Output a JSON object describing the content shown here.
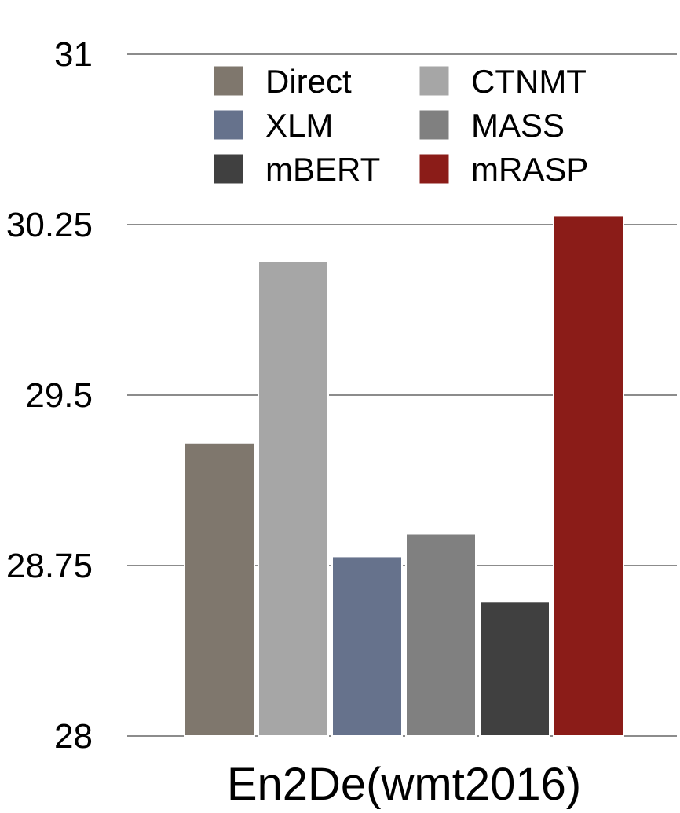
{
  "chart_data": {
    "type": "bar",
    "categories": [
      "En2De(wmt2016)"
    ],
    "series": [
      {
        "name": "Direct",
        "values": [
          29.29
        ],
        "color": "#7f776d"
      },
      {
        "name": "CTNMT",
        "values": [
          30.09
        ],
        "color": "#a6a6a6"
      },
      {
        "name": "XLM",
        "values": [
          28.79
        ],
        "color": "#66728c"
      },
      {
        "name": "MASS",
        "values": [
          28.89
        ],
        "color": "#808080"
      },
      {
        "name": "mBERT",
        "values": [
          28.59
        ],
        "color": "#404040"
      },
      {
        "name": "mRASP",
        "values": [
          30.29
        ],
        "color": "#8b1c18"
      }
    ],
    "legend_order": [
      "Direct",
      "CTNMT",
      "XLM",
      "MASS",
      "mBERT",
      "mRASP"
    ],
    "legend_position": "top",
    "ylim": [
      28,
      31
    ],
    "yticks": [
      "28",
      "28.75",
      "29.5",
      "30.25",
      "31"
    ],
    "grid": true,
    "title": "",
    "xlabel": "",
    "ylabel": ""
  }
}
